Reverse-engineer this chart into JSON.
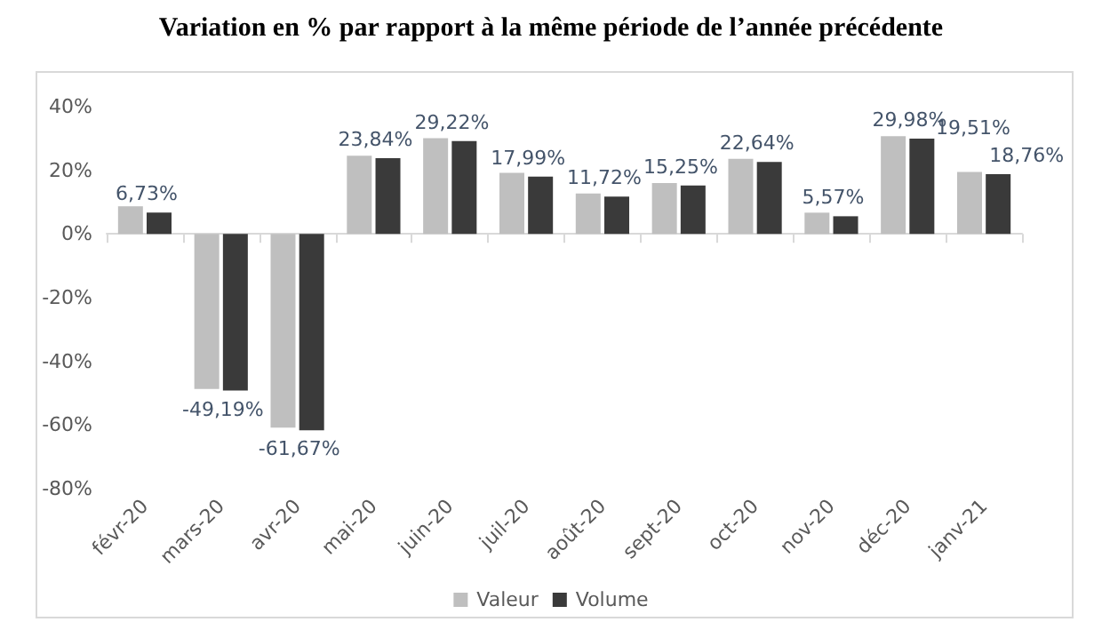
{
  "chart_data": {
    "type": "bar",
    "title": "Variation en % par rapport à la même période de l’année précédente",
    "categories": [
      "févr-20",
      "mars-20",
      "avr-20",
      "mai-20",
      "juin-20",
      "juil-20",
      "août-20",
      "sept-20",
      "oct-20",
      "nov-20",
      "déc-20",
      "janv-21"
    ],
    "series": [
      {
        "name": "Valeur",
        "color": "#bfbfbf",
        "values": [
          8.7,
          -48.7,
          -60.8,
          24.6,
          30.1,
          19.2,
          12.7,
          16.0,
          23.6,
          6.7,
          30.7,
          19.51
        ],
        "value_labels": [
          null,
          null,
          null,
          null,
          null,
          null,
          null,
          null,
          null,
          null,
          null,
          "19,51%"
        ]
      },
      {
        "name": "Volume",
        "color": "#3a3a3a",
        "values": [
          6.73,
          -49.19,
          -61.67,
          23.84,
          29.22,
          17.99,
          11.72,
          15.25,
          22.64,
          5.57,
          29.98,
          18.76
        ],
        "value_labels": [
          "6,73%",
          "-49,19%",
          "-61,67%",
          "23,84%",
          "29,22%",
          "17,99%",
          "11,72%",
          "15,25%",
          "22,64%",
          "5,57%",
          "29,98%",
          "18,76%"
        ]
      }
    ],
    "ylim": [
      -80,
      40
    ],
    "yticks": [
      {
        "value": -80,
        "label": "-80%"
      },
      {
        "value": -60,
        "label": "-60%"
      },
      {
        "value": -40,
        "label": "-40%"
      },
      {
        "value": -20,
        "label": "-20%"
      },
      {
        "value": 0,
        "label": "0%"
      },
      {
        "value": 20,
        "label": "20%"
      },
      {
        "value": 40,
        "label": "40%"
      }
    ],
    "legend": "bottom"
  }
}
